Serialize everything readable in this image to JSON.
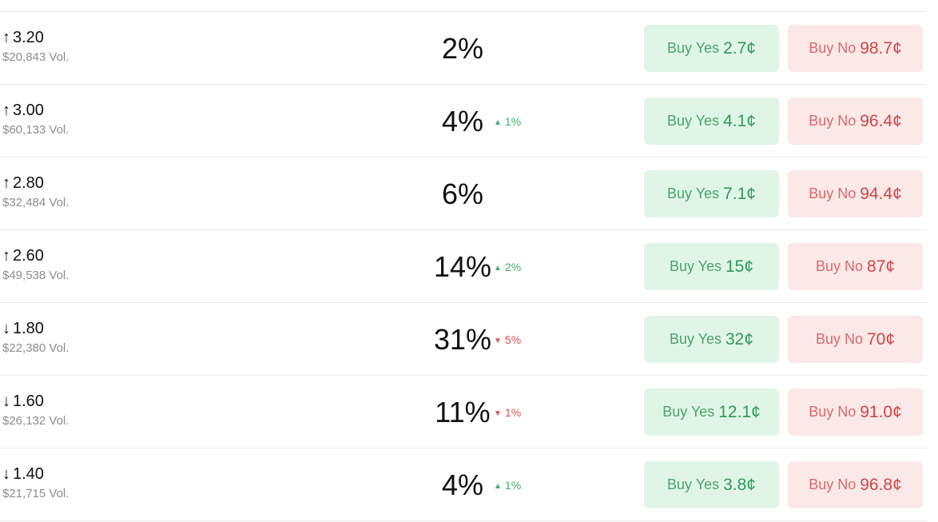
{
  "colors": {
    "yes_bg": "#e0f5e8",
    "yes_text": "#2f9a58",
    "no_bg": "#fbe8e8",
    "no_text": "#cf4545",
    "up": "#3fae6a",
    "down": "#d9534f"
  },
  "rows": [
    {
      "arrow": "↑",
      "value": "3.20",
      "volume": "$20,843 Vol.",
      "percent": "2%",
      "change": "",
      "change_dir": "",
      "yes_label": "Buy Yes",
      "yes_price": "2.7¢",
      "no_label": "Buy No",
      "no_price": "98.7¢"
    },
    {
      "arrow": "↑",
      "value": "3.00",
      "volume": "$60,133 Vol.",
      "percent": "4%",
      "change": "1%",
      "change_dir": "up",
      "yes_label": "Buy Yes",
      "yes_price": "4.1¢",
      "no_label": "Buy No",
      "no_price": "96.4¢"
    },
    {
      "arrow": "↑",
      "value": "2.80",
      "volume": "$32,484 Vol.",
      "percent": "6%",
      "change": "",
      "change_dir": "",
      "yes_label": "Buy Yes",
      "yes_price": "7.1¢",
      "no_label": "Buy No",
      "no_price": "94.4¢"
    },
    {
      "arrow": "↑",
      "value": "2.60",
      "volume": "$49,538 Vol.",
      "percent": "14%",
      "change": "2%",
      "change_dir": "up",
      "yes_label": "Buy Yes",
      "yes_price": "15¢",
      "no_label": "Buy No",
      "no_price": "87¢"
    },
    {
      "arrow": "↓",
      "value": "1.80",
      "volume": "$22,380 Vol.",
      "percent": "31%",
      "change": "5%",
      "change_dir": "down",
      "yes_label": "Buy Yes",
      "yes_price": "32¢",
      "no_label": "Buy No",
      "no_price": "70¢"
    },
    {
      "arrow": "↓",
      "value": "1.60",
      "volume": "$26,132 Vol.",
      "percent": "11%",
      "change": "1%",
      "change_dir": "down",
      "yes_label": "Buy Yes",
      "yes_price": "12.1¢",
      "no_label": "Buy No",
      "no_price": "91.0¢"
    },
    {
      "arrow": "↓",
      "value": "1.40",
      "volume": "$21,715 Vol.",
      "percent": "4%",
      "change": "1%",
      "change_dir": "up",
      "yes_label": "Buy Yes",
      "yes_price": "3.8¢",
      "no_label": "Buy No",
      "no_price": "96.8¢"
    }
  ]
}
